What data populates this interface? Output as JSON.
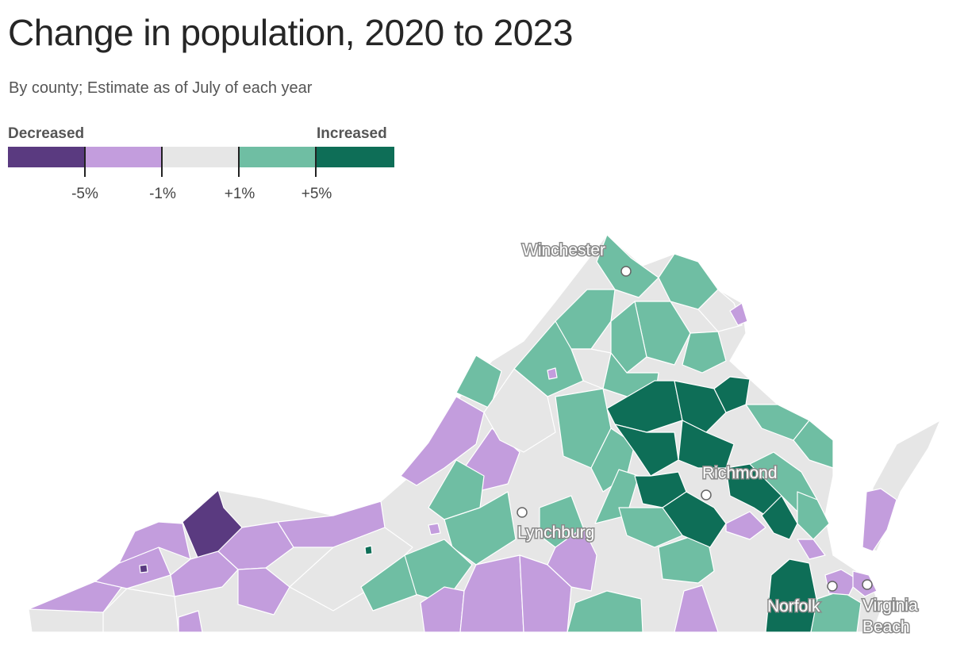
{
  "title": "Change in population, 2020 to 2023",
  "subtitle": "By county; Estimate as of July of each year",
  "legend": {
    "low_label": "Decreased",
    "high_label": "Increased",
    "bins": [
      {
        "range": "< -5%",
        "color": "#5a3a80"
      },
      {
        "range": "-5% to -1%",
        "color": "#c39ddd"
      },
      {
        "range": "-1% to +1%",
        "color": "#e6e6e6"
      },
      {
        "range": "+1% to +5%",
        "color": "#6fbea3"
      },
      {
        "range": "> +5%",
        "color": "#0e6e57"
      }
    ],
    "thresholds": [
      "-5%",
      "-1%",
      "+1%",
      "+5%"
    ]
  },
  "cities": [
    {
      "name": "Winchester"
    },
    {
      "name": "Richmond"
    },
    {
      "name": "Lynchburg"
    },
    {
      "name": "Norfolk"
    },
    {
      "name": "Virginia",
      "name2": "Beach"
    }
  ],
  "chart_data": {
    "type": "choropleth",
    "region": "Virginia counties",
    "color_scale": {
      "breaks": [
        -5,
        -1,
        1,
        5
      ],
      "unit": "%",
      "colors": [
        "#5a3a80",
        "#c39ddd",
        "#e6e6e6",
        "#6fbea3",
        "#0e6e57"
      ]
    }
  }
}
